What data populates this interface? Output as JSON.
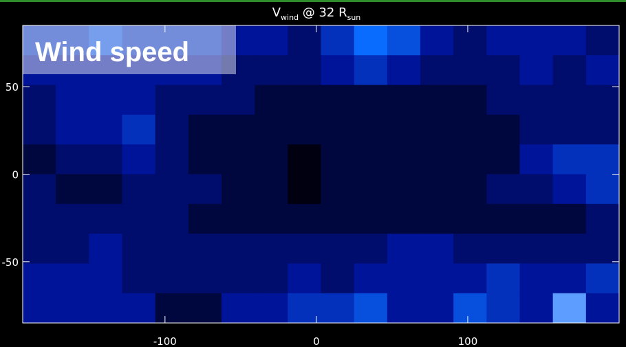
{
  "chart_data": {
    "type": "heatmap",
    "title": [
      {
        "text": "V"
      },
      {
        "text": "wind",
        "sub": true
      },
      {
        "text": " @ 32 R"
      },
      {
        "text": "sun",
        "sub": true
      }
    ],
    "overlay_label": "Wind speed",
    "xlim": [
      -194,
      200
    ],
    "ylim": [
      -85,
      85
    ],
    "xticks": [
      -100,
      0,
      100
    ],
    "yticks": [
      -50,
      0,
      50
    ],
    "colormap": [
      "#000010",
      "#00149a",
      "#0a6cff",
      "#ffffff"
    ],
    "vmax": 9,
    "values": [
      [
        4,
        4,
        5,
        4,
        4,
        4,
        3,
        3,
        2,
        4,
        6,
        5,
        3,
        2,
        3,
        3,
        3,
        2
      ],
      [
        3,
        3,
        3,
        3,
        3,
        3,
        2,
        2,
        2,
        3,
        4,
        3,
        2,
        2,
        2,
        3,
        2,
        3
      ],
      [
        2,
        3,
        3,
        3,
        2,
        2,
        2,
        1,
        1,
        1,
        1,
        1,
        1,
        1,
        2,
        2,
        2,
        2
      ],
      [
        2,
        3,
        3,
        4,
        2,
        1,
        1,
        1,
        1,
        1,
        1,
        1,
        1,
        1,
        1,
        2,
        2,
        2
      ],
      [
        1,
        2,
        2,
        3,
        2,
        1,
        1,
        1,
        0,
        1,
        1,
        1,
        1,
        1,
        1,
        3,
        4,
        4
      ],
      [
        2,
        1,
        1,
        2,
        2,
        2,
        1,
        1,
        0,
        1,
        1,
        1,
        1,
        1,
        2,
        2,
        3,
        4
      ],
      [
        2,
        2,
        2,
        2,
        2,
        1,
        1,
        1,
        1,
        1,
        1,
        1,
        1,
        1,
        1,
        1,
        1,
        2
      ],
      [
        2,
        2,
        3,
        2,
        2,
        2,
        2,
        2,
        2,
        2,
        2,
        3,
        3,
        2,
        2,
        2,
        2,
        2
      ],
      [
        3,
        3,
        3,
        2,
        2,
        2,
        2,
        2,
        3,
        2,
        3,
        3,
        3,
        3,
        4,
        3,
        3,
        4
      ],
      [
        3,
        3,
        3,
        3,
        1,
        1,
        3,
        3,
        4,
        4,
        5,
        3,
        3,
        5,
        4,
        3,
        7,
        3
      ]
    ]
  }
}
